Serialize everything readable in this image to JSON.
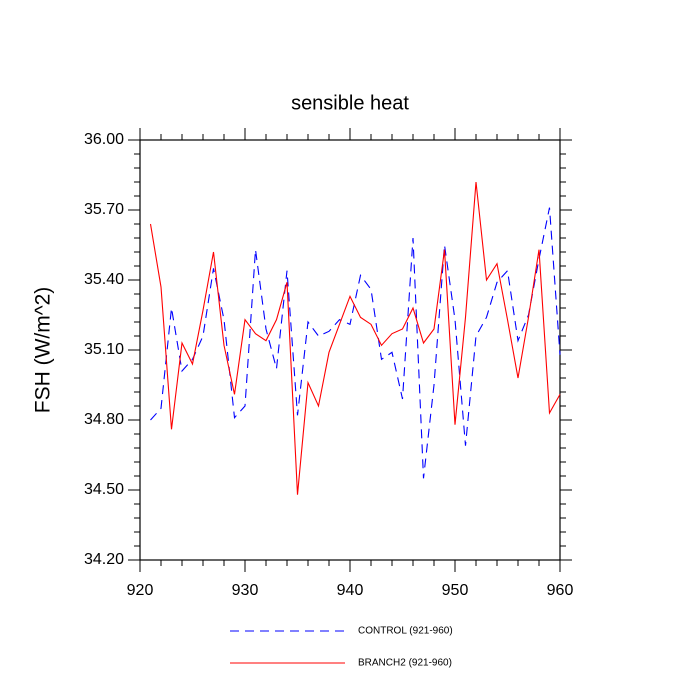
{
  "chart_data": {
    "type": "line",
    "title": "sensible heat",
    "y_label": "FSH  (W/m^2)",
    "x": [
      921,
      922,
      923,
      924,
      925,
      926,
      927,
      928,
      929,
      930,
      931,
      932,
      933,
      934,
      935,
      936,
      937,
      938,
      939,
      940,
      941,
      942,
      943,
      944,
      945,
      946,
      947,
      948,
      949,
      950,
      951,
      952,
      953,
      954,
      955,
      956,
      957,
      958,
      959,
      960
    ],
    "series": [
      {
        "name": "CONTROL (921-960)",
        "color": "#0000ff",
        "dash": true,
        "values": [
          34.8,
          34.85,
          35.28,
          35.01,
          35.06,
          35.16,
          35.45,
          35.23,
          34.81,
          34.86,
          35.53,
          35.19,
          35.02,
          35.44,
          34.82,
          35.22,
          35.16,
          35.18,
          35.23,
          35.21,
          35.42,
          35.36,
          35.06,
          35.09,
          34.89,
          35.58,
          34.55,
          34.95,
          35.55,
          35.23,
          34.69,
          35.16,
          35.24,
          35.39,
          35.44,
          35.14,
          35.25,
          35.49,
          35.71,
          35.08
        ]
      },
      {
        "name": "BRANCH2 (921-960)",
        "color": "#ff0000",
        "dash": false,
        "values": [
          35.64,
          35.37,
          34.76,
          35.13,
          35.04,
          35.27,
          35.52,
          35.12,
          34.91,
          35.23,
          35.17,
          35.14,
          35.23,
          35.39,
          34.48,
          34.96,
          34.86,
          35.09,
          35.21,
          35.33,
          35.24,
          35.21,
          35.12,
          35.17,
          35.19,
          35.28,
          35.13,
          35.19,
          35.53,
          34.78,
          35.24,
          35.82,
          35.4,
          35.47,
          35.23,
          34.98,
          35.24,
          35.53,
          34.83,
          34.91
        ]
      }
    ],
    "xlim": [
      920,
      960
    ],
    "xticks": [
      920,
      930,
      940,
      950,
      960
    ],
    "ylim": [
      34.2,
      36.0
    ],
    "yticks": [
      {
        "value": 34.2,
        "label": "34.20"
      },
      {
        "value": 34.5,
        "label": "34.50"
      },
      {
        "value": 34.8,
        "label": "34.80"
      },
      {
        "value": 35.1,
        "label": "35.10"
      },
      {
        "value": 35.4,
        "label": "35.40"
      },
      {
        "value": 35.7,
        "label": "35.70"
      },
      {
        "value": 36.0,
        "label": "36.00"
      }
    ]
  }
}
